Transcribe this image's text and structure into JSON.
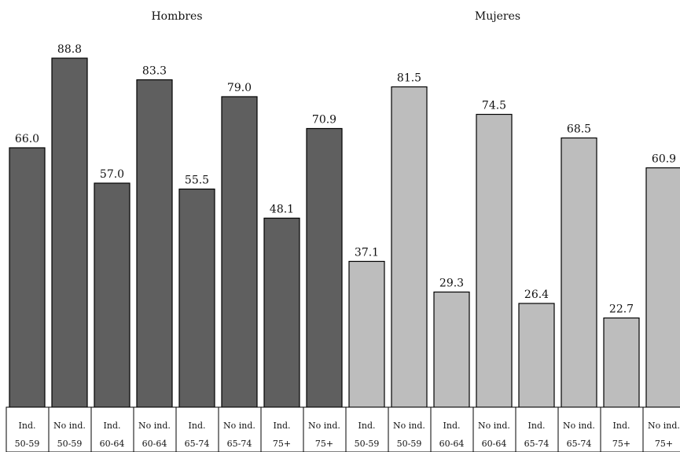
{
  "chart_data": {
    "type": "bar",
    "groups": [
      {
        "title": "Hombres",
        "color": "#5f5f5f"
      },
      {
        "title": "Mujeres",
        "color": "#bdbdbd"
      }
    ],
    "ylim": [
      0,
      100
    ],
    "grid": false,
    "bars": [
      {
        "group": 0,
        "line1": "Ind.",
        "line2": "50-59",
        "value": 66.0,
        "label": "66.0"
      },
      {
        "group": 0,
        "line1": "No ind.",
        "line2": "50-59",
        "value": 88.8,
        "label": "88.8"
      },
      {
        "group": 0,
        "line1": "Ind.",
        "line2": "60-64",
        "value": 57.0,
        "label": "57.0"
      },
      {
        "group": 0,
        "line1": "No ind.",
        "line2": "60-64",
        "value": 83.3,
        "label": "83.3"
      },
      {
        "group": 0,
        "line1": "Ind.",
        "line2": "65-74",
        "value": 55.5,
        "label": "55.5"
      },
      {
        "group": 0,
        "line1": "No ind.",
        "line2": "65-74",
        "value": 79.0,
        "label": "79.0"
      },
      {
        "group": 0,
        "line1": "Ind.",
        "line2": "75+",
        "value": 48.1,
        "label": "48.1"
      },
      {
        "group": 0,
        "line1": "No ind.",
        "line2": "75+",
        "value": 70.9,
        "label": "70.9"
      },
      {
        "group": 1,
        "line1": "Ind.",
        "line2": "50-59",
        "value": 37.1,
        "label": "37.1"
      },
      {
        "group": 1,
        "line1": "No ind.",
        "line2": "50-59",
        "value": 81.5,
        "label": "81.5"
      },
      {
        "group": 1,
        "line1": "Ind.",
        "line2": "60-64",
        "value": 29.3,
        "label": "29.3"
      },
      {
        "group": 1,
        "line1": "No ind.",
        "line2": "60-64",
        "value": 74.5,
        "label": "74.5"
      },
      {
        "group": 1,
        "line1": "Ind.",
        "line2": "65-74",
        "value": 26.4,
        "label": "26.4"
      },
      {
        "group": 1,
        "line1": "No ind.",
        "line2": "65-74",
        "value": 68.5,
        "label": "68.5"
      },
      {
        "group": 1,
        "line1": "Ind.",
        "line2": "75+",
        "value": 22.7,
        "label": "22.7"
      },
      {
        "group": 1,
        "line1": "No ind.",
        "line2": "75+",
        "value": 60.9,
        "label": "60.9"
      }
    ]
  }
}
